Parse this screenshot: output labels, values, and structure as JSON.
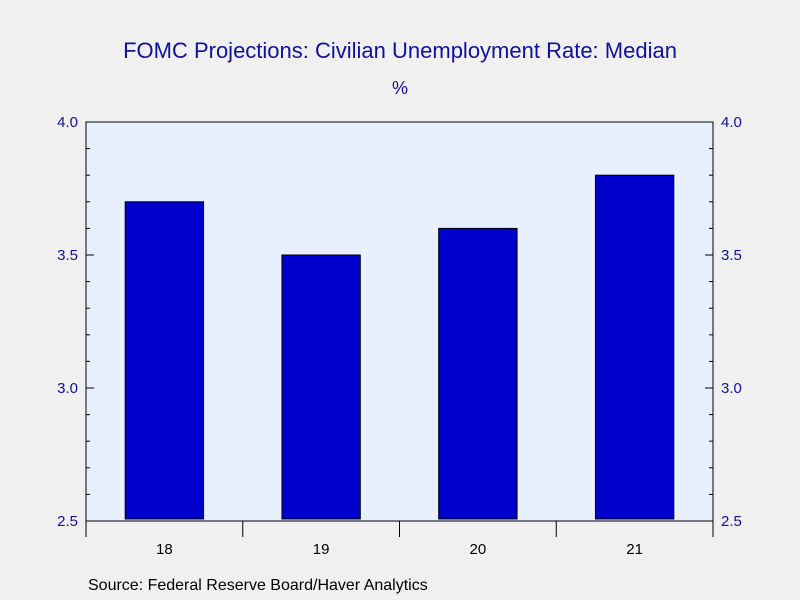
{
  "chart_data": {
    "type": "bar",
    "title": "FOMC Projections: Civilian Unemployment Rate: Median",
    "unit_label": "%",
    "categories": [
      "18",
      "19",
      "20",
      "21"
    ],
    "values": [
      3.7,
      3.5,
      3.6,
      3.8
    ],
    "ylim": [
      2.5,
      4.0
    ],
    "yticks": [
      "2.5",
      "3.0",
      "3.5",
      "4.0"
    ],
    "ytick_values": [
      2.5,
      3.0,
      3.5,
      4.0
    ],
    "dual_y_axis": true,
    "grid": false,
    "colors": {
      "bar_fill": "#0000cc",
      "bar_stroke": "#000000",
      "plot_background": "#e8f0ff",
      "text": "#1010a0"
    }
  },
  "source": "Source:  Federal Reserve Board/Haver Analytics"
}
